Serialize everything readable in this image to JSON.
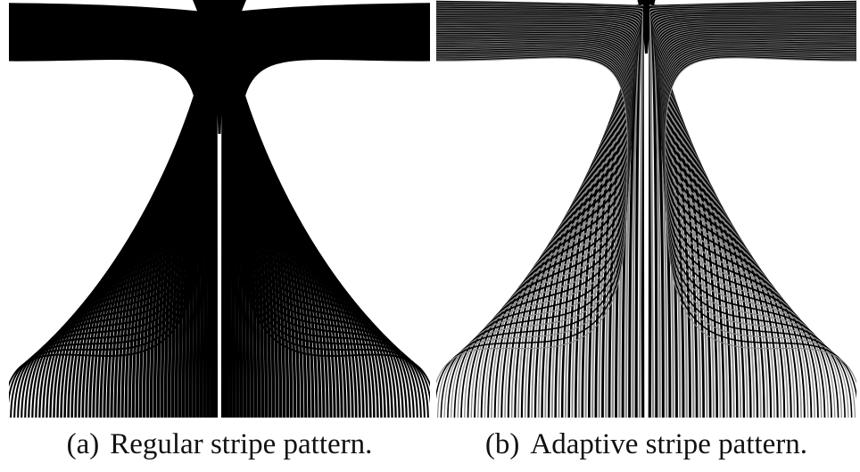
{
  "figure": {
    "panels": [
      {
        "label": "(a)",
        "caption": "Regular stripe pattern.",
        "style": "regular",
        "stroke_color": "#000000"
      },
      {
        "label": "(b)",
        "caption": "Adaptive stripe pattern.",
        "style": "adaptive",
        "stroke_color": "#000000",
        "secondary_color": "#8a8a8a"
      }
    ]
  }
}
